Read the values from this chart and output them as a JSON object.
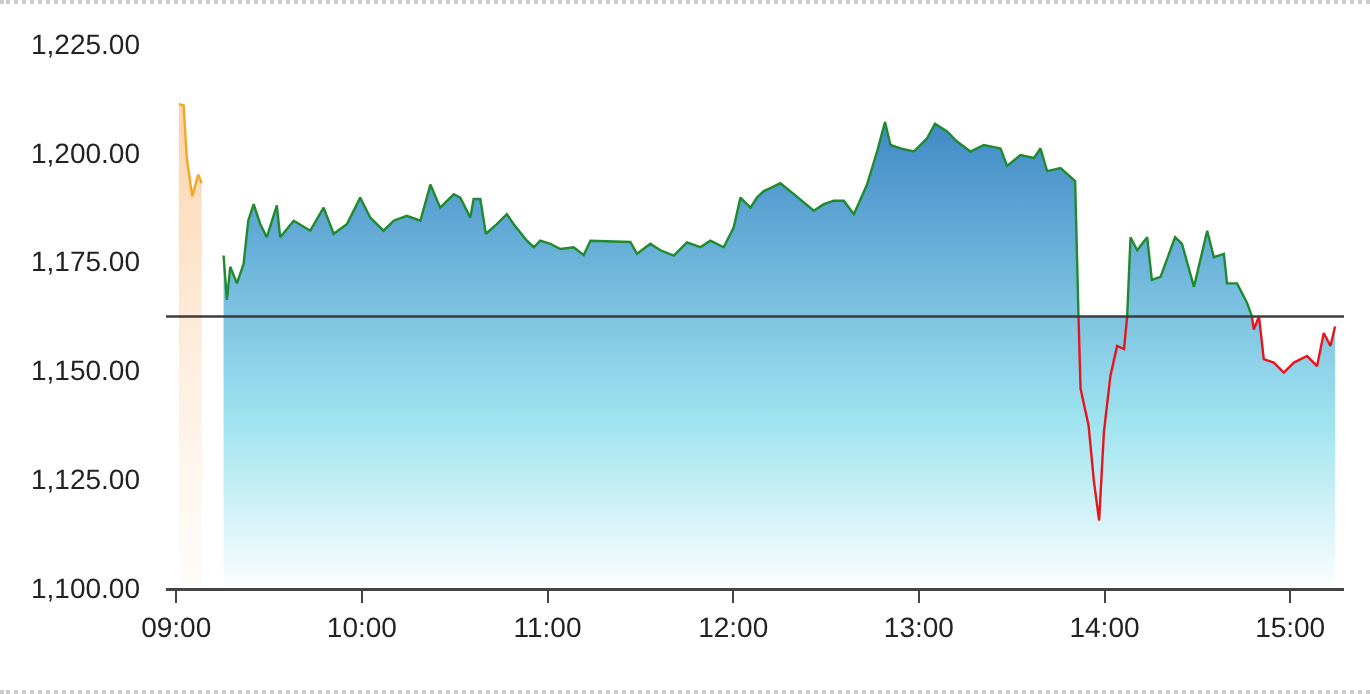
{
  "chart_data": {
    "type": "area",
    "grid": false,
    "xlim": [
      8.945,
      15.29
    ],
    "xticks": [
      {
        "value": 9,
        "label": "09:00"
      },
      {
        "value": 10,
        "label": "10:00"
      },
      {
        "value": 11,
        "label": "11:00"
      },
      {
        "value": 12,
        "label": "12:00"
      },
      {
        "value": 13,
        "label": "13:00"
      },
      {
        "value": 14,
        "label": "14:00"
      },
      {
        "value": 15,
        "label": "15:00"
      }
    ],
    "ylim": [
      1100,
      1225
    ],
    "yticks": [
      {
        "value": 1100,
        "label": "1,100.00"
      },
      {
        "value": 1125,
        "label": "1,125.00"
      },
      {
        "value": 1150,
        "label": "1,150.00"
      },
      {
        "value": 1175,
        "label": "1,175.00"
      },
      {
        "value": 1200,
        "label": "1,200.00"
      },
      {
        "value": 1225,
        "label": "1,225.00"
      }
    ],
    "ref_lines": [
      {
        "axis": "y",
        "value": 1162.4,
        "color": "#3c3c3c"
      }
    ],
    "series": [
      {
        "color": "#f5a623",
        "x": [
          9.014,
          9.04,
          9.057,
          9.086,
          9.119,
          9.137
        ],
        "values": [
          1211.2,
          1210.9,
          1198.8,
          1190,
          1195,
          1193
        ]
      },
      {
        "color": "#1f8a2e",
        "x": [
          9.255,
          9.273,
          9.291,
          9.327,
          9.363,
          9.388,
          9.417,
          9.453,
          9.488,
          9.542,
          9.56,
          9.633,
          9.722,
          9.794,
          9.848,
          9.919,
          9.991,
          10.045,
          10.117,
          10.171,
          10.242,
          10.315,
          10.369,
          10.422,
          10.495,
          10.53,
          10.566,
          10.584,
          10.602,
          10.638,
          10.668,
          10.727,
          10.781,
          10.818,
          10.889,
          10.926,
          10.961,
          11.015,
          11.069,
          11.141,
          11.195,
          11.231,
          11.446,
          11.482,
          11.554,
          11.608,
          11.68,
          11.751,
          11.823,
          11.877,
          11.949,
          12.003,
          12.039,
          12.093,
          12.128,
          12.165,
          12.2,
          12.254,
          12.327,
          12.434,
          12.488,
          12.542,
          12.596,
          12.65,
          12.721,
          12.775,
          12.818,
          12.847,
          12.901,
          12.973,
          13.044,
          13.087,
          13.152,
          13.206,
          13.278,
          13.35,
          13.44,
          13.475,
          13.547,
          13.62,
          13.655,
          13.691,
          13.763,
          13.842,
          13.86,
          14.0,
          14.122,
          14.14,
          14.176,
          14.23,
          14.255,
          14.302,
          14.38,
          14.417,
          14.482,
          14.553,
          14.589,
          14.643,
          14.66,
          14.714,
          14.768,
          14.794
        ],
        "values": [
          1176.4,
          1166.2,
          1173.8,
          1170,
          1174.5,
          1184.4,
          1188.2,
          1183.6,
          1180.6,
          1187.9,
          1180.6,
          1184.4,
          1182.1,
          1187.4,
          1181.4,
          1183.6,
          1189.7,
          1185.1,
          1182.1,
          1184.4,
          1185.5,
          1184.4,
          1192.7,
          1187.4,
          1190.5,
          1189.7,
          1186.7,
          1185.1,
          1189.4,
          1189.4,
          1181.4,
          1183.6,
          1185.9,
          1183.6,
          1179.8,
          1178.3,
          1179.8,
          1179.1,
          1177.9,
          1178.3,
          1176.5,
          1179.8,
          1179.5,
          1176.8,
          1179.1,
          1177.6,
          1176.4,
          1179.4,
          1178.3,
          1179.8,
          1178.3,
          1182.9,
          1189.7,
          1187.4,
          1189.7,
          1191.2,
          1191.9,
          1193,
          1190.5,
          1186.7,
          1188.2,
          1189,
          1189,
          1185.9,
          1192.7,
          1200.3,
          1207.1,
          1201.8,
          1201,
          1200.3,
          1203.3,
          1206.7,
          1204.9,
          1202.6,
          1200.3,
          1201.8,
          1201,
          1197,
          1199.5,
          1198.8,
          1201,
          1195.8,
          1196.5,
          1193.5,
          1162.4,
          null,
          1162.4,
          1180.6,
          1177.6,
          1180.6,
          1170.8,
          1171.5,
          1180.6,
          1179.1,
          1169.2,
          1182.1,
          1176,
          1176.8,
          1170,
          1170,
          1165.5,
          1162.4
        ]
      },
      {
        "color": "#e8141c",
        "x": [
          13.86,
          13.871,
          13.914,
          13.943,
          13.971,
          13.997,
          14.032,
          14.068,
          14.105,
          14.122,
          14.45,
          14.794,
          14.804,
          14.832,
          14.858,
          14.912,
          14.966,
          15.02,
          15.091,
          15.145,
          15.181,
          15.217,
          15.242
        ],
        "values": [
          1162.4,
          1145.8,
          1137.4,
          1124.5,
          1115.5,
          1135.9,
          1148.8,
          1155.6,
          1154.9,
          1162.4,
          null,
          1162.4,
          1159.4,
          1162.4,
          1152.6,
          1151.8,
          1149.5,
          1151.8,
          1153.3,
          1151,
          1158.6,
          1155.6,
          1160.1
        ]
      }
    ]
  }
}
